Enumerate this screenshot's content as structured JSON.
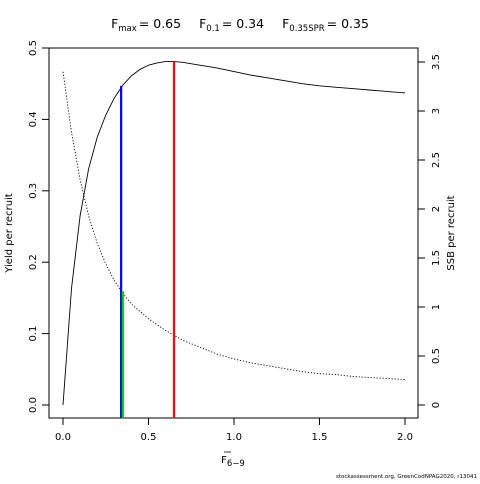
{
  "chart_data": {
    "type": "line",
    "title": {
      "fmax": {
        "main": "F",
        "sub": "max",
        "value": "= 0.65"
      },
      "f01": {
        "main": "F",
        "sub": "0.1",
        "value": "= 0.34"
      },
      "f35": {
        "main": "F",
        "sub": "0.35SPR",
        "value": "= 0.35"
      }
    },
    "xlabel": {
      "main": "F",
      "sub": "6−9"
    },
    "ylabel_left": "Yield per recruit",
    "ylabel_right": "SSB per recruit",
    "xlim": [
      0,
      2.0
    ],
    "ylim_left": [
      0,
      0.5
    ],
    "ylim_right": [
      0,
      3.5
    ],
    "x_ticks": [
      "0.0",
      "0.5",
      "1.0",
      "1.5",
      "2.0"
    ],
    "y_left_ticks": [
      "0.0",
      "0.1",
      "0.2",
      "0.3",
      "0.4",
      "0.5"
    ],
    "y_right_ticks": [
      "0",
      "0.5",
      "1",
      "1.5",
      "2",
      "2.5",
      "3",
      "3.5"
    ],
    "grid": false,
    "series": [
      {
        "axis": "left",
        "style": "solid",
        "x": [
          0,
          0.05,
          0.1,
          0.15,
          0.2,
          0.25,
          0.3,
          0.35,
          0.4,
          0.45,
          0.5,
          0.55,
          0.6,
          0.65,
          0.7,
          0.8,
          0.9,
          1.0,
          1.1,
          1.2,
          1.3,
          1.4,
          1.5,
          1.6,
          1.7,
          1.8,
          1.9,
          2.0
        ],
        "y": [
          0,
          0.164,
          0.265,
          0.331,
          0.375,
          0.406,
          0.43,
          0.448,
          0.461,
          0.47,
          0.476,
          0.479,
          0.481,
          0.481,
          0.48,
          0.476,
          0.472,
          0.467,
          0.462,
          0.458,
          0.454,
          0.45,
          0.447,
          0.445,
          0.443,
          0.441,
          0.439,
          0.437
        ]
      },
      {
        "axis": "right",
        "style": "dotted",
        "x": [
          0,
          0.05,
          0.1,
          0.15,
          0.2,
          0.25,
          0.3,
          0.35,
          0.4,
          0.5,
          0.6,
          0.7,
          0.8,
          0.9,
          1.0,
          1.1,
          1.2,
          1.3,
          1.4,
          1.5,
          1.6,
          1.7,
          1.8,
          1.9,
          2.0
        ],
        "y": [
          3.4,
          2.78,
          2.3,
          1.93,
          1.65,
          1.44,
          1.27,
          1.14,
          1.03,
          0.88,
          0.76,
          0.66,
          0.59,
          0.52,
          0.47,
          0.43,
          0.4,
          0.37,
          0.34,
          0.32,
          0.31,
          0.29,
          0.28,
          0.27,
          0.26
        ]
      }
    ],
    "reference_lines": [
      {
        "label": "Fmax",
        "x": 0.65,
        "y": 0.481,
        "axis": "left",
        "color": "#ff0000"
      },
      {
        "label": "F0.1",
        "x": 0.34,
        "y": 0.447,
        "axis": "left",
        "color": "#0000ff"
      },
      {
        "label": "F0.35SPR",
        "x": 0.35,
        "y": 1.16,
        "axis": "right",
        "color": "#00cd00"
      }
    ],
    "credit": "stockassessment.org, GreenCodNPAG2020, r13041"
  }
}
